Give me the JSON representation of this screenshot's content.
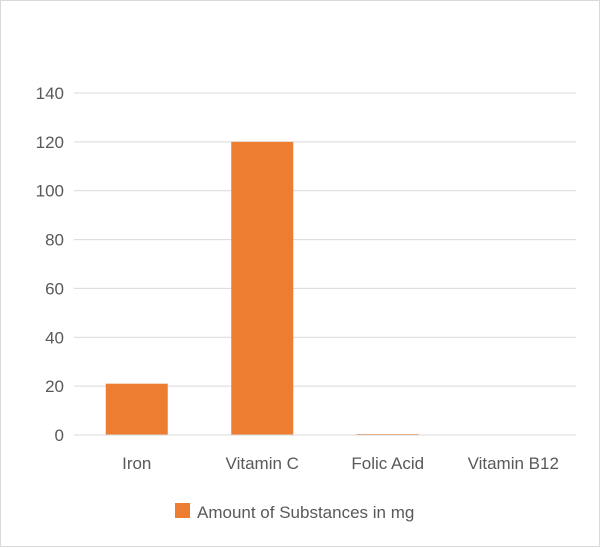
{
  "chart_data": {
    "type": "bar",
    "categories": [
      "Iron",
      "Vitamin C",
      "Folic Acid",
      "Vitamin B12"
    ],
    "series": [
      {
        "name": "Amount of Substances in mg",
        "values": [
          21,
          120,
          0.4,
          0.0024
        ],
        "color": "#ed7d31"
      }
    ],
    "ylim": [
      0,
      140
    ],
    "yticks": [
      0,
      20,
      40,
      60,
      80,
      100,
      120,
      140
    ],
    "grid": true,
    "legend": "bottom"
  }
}
